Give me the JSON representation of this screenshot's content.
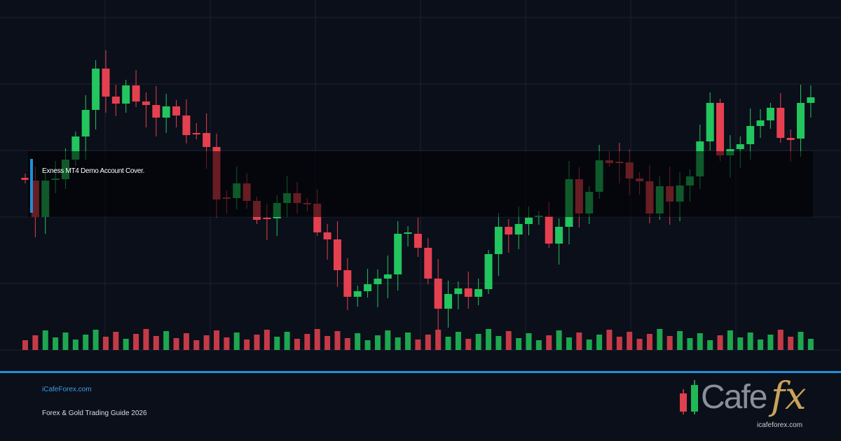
{
  "cover": {
    "caption": "Exness MT4 Demo Account Cover.",
    "site": "iCafeForex.com",
    "subtitle": "Forex & Gold Trading Guide 2026"
  },
  "brand": {
    "logo_main": "Cafe",
    "logo_accent": "fx",
    "url": "icafeforex.com"
  }
}
